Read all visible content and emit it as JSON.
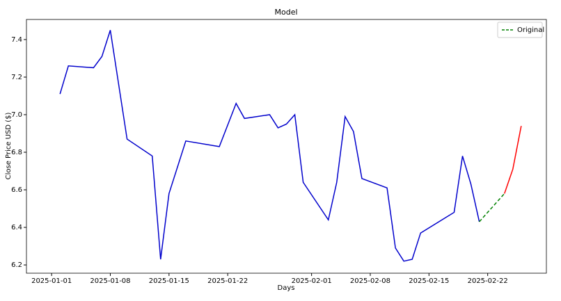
{
  "chart_data": {
    "type": "line",
    "title": "Model",
    "xlabel": "Days",
    "ylabel": "Close Price USD ($)",
    "xlim": [
      "2024-12-29",
      "2025-03-01"
    ],
    "ylim": [
      6.156,
      7.507
    ],
    "xticks": [
      "2025-01-01",
      "2025-01-08",
      "2025-01-15",
      "2025-01-22",
      "2025-02-01",
      "2025-02-08",
      "2025-02-15",
      "2025-02-22"
    ],
    "yticks": [
      6.2,
      6.4,
      6.6,
      6.8,
      {
        "value": 7,
        "label": "7.0"
      },
      7.2,
      7.4
    ],
    "legend": "upper right",
    "series": [
      {
        "color": "#0000cc",
        "style": "solid",
        "x": [
          "2025-01-02",
          "2025-01-03",
          "2025-01-06",
          "2025-01-07",
          "2025-01-08",
          "2025-01-10",
          "2025-01-13",
          "2025-01-14",
          "2025-01-15",
          "2025-01-17",
          "2025-01-21",
          "2025-01-23",
          "2025-01-24",
          "2025-01-27",
          "2025-01-28",
          "2025-01-29",
          "2025-01-30",
          "2025-01-31",
          "2025-02-03",
          "2025-02-04",
          "2025-02-05",
          "2025-02-06",
          "2025-02-07",
          "2025-02-10",
          "2025-02-11",
          "2025-02-12",
          "2025-02-13",
          "2025-02-14",
          "2025-02-18",
          "2025-02-19",
          "2025-02-20",
          "2025-02-21"
        ],
        "values": [
          7.11,
          7.26,
          7.25,
          7.31,
          7.45,
          6.87,
          6.78,
          6.23,
          6.58,
          6.86,
          6.83,
          7.06,
          6.98,
          7.0,
          6.93,
          6.95,
          7.0,
          6.64,
          6.44,
          6.64,
          6.99,
          6.91,
          6.66,
          6.61,
          6.29,
          6.22,
          6.23,
          6.37,
          6.48,
          6.78,
          6.63,
          6.43
        ]
      },
      {
        "name": "Original",
        "color": "#008000",
        "style": "dashed",
        "x": [
          "2025-02-21",
          "2025-02-24"
        ],
        "values": [
          6.43,
          6.58
        ]
      },
      {
        "color": "#ff0000",
        "style": "solid",
        "x": [
          "2025-02-24",
          "2025-02-25",
          "2025-02-26"
        ],
        "values": [
          6.58,
          6.71,
          6.94
        ]
      }
    ]
  }
}
